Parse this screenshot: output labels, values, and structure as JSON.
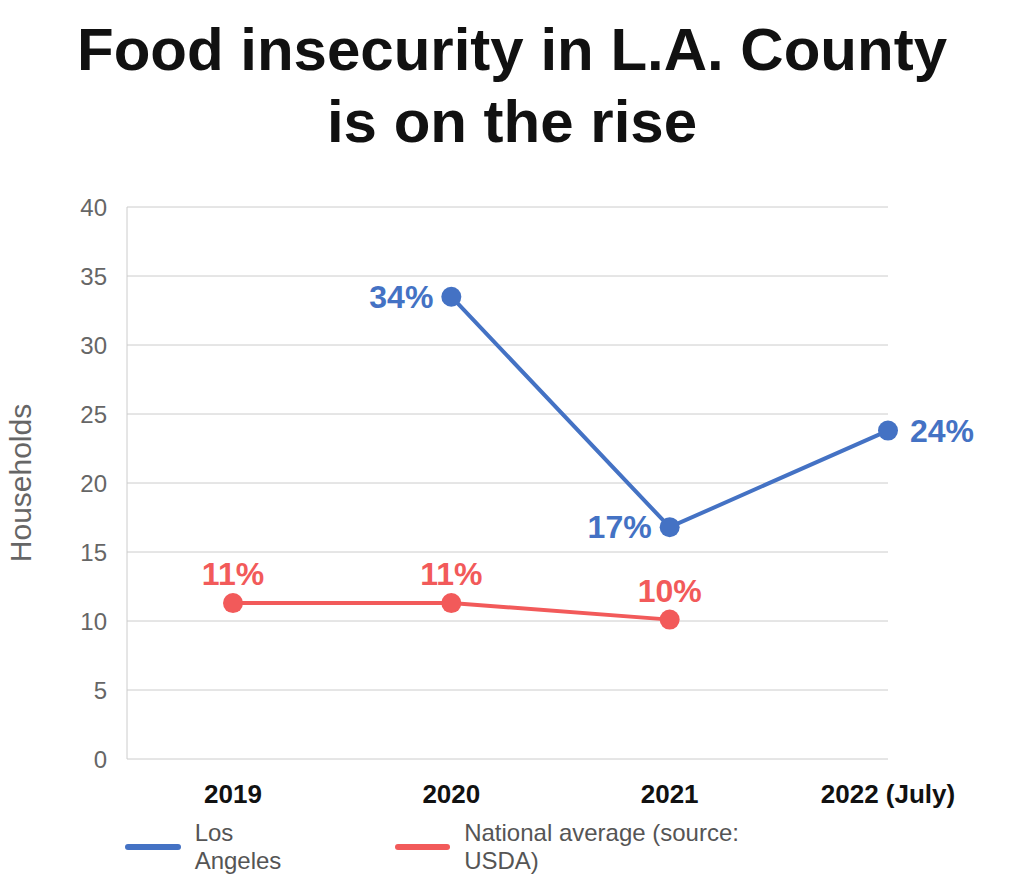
{
  "chart_data": {
    "type": "line",
    "title": "Food insecurity in L.A. County\nis on the rise",
    "ylabel": "Households",
    "categories": [
      "2019",
      "2020",
      "2021",
      "2022 (July)"
    ],
    "series": [
      {
        "name": "Los Angeles",
        "color": "#4472c4",
        "values": [
          null,
          33.5,
          16.8,
          23.8
        ],
        "value_labels": [
          null,
          "34%",
          "17%",
          "24%"
        ]
      },
      {
        "name": "National average (source: USDA)",
        "color": "#f25a5a",
        "values": [
          11.3,
          11.3,
          10.1,
          null
        ],
        "value_labels": [
          "11%",
          "11%",
          "10%",
          null
        ]
      }
    ],
    "ylim": [
      0,
      40
    ],
    "yticks": [
      0,
      5,
      10,
      15,
      20,
      25,
      30,
      35,
      40
    ],
    "grid": true,
    "legend": "bottom",
    "data_labels": true,
    "marker": "circle"
  }
}
